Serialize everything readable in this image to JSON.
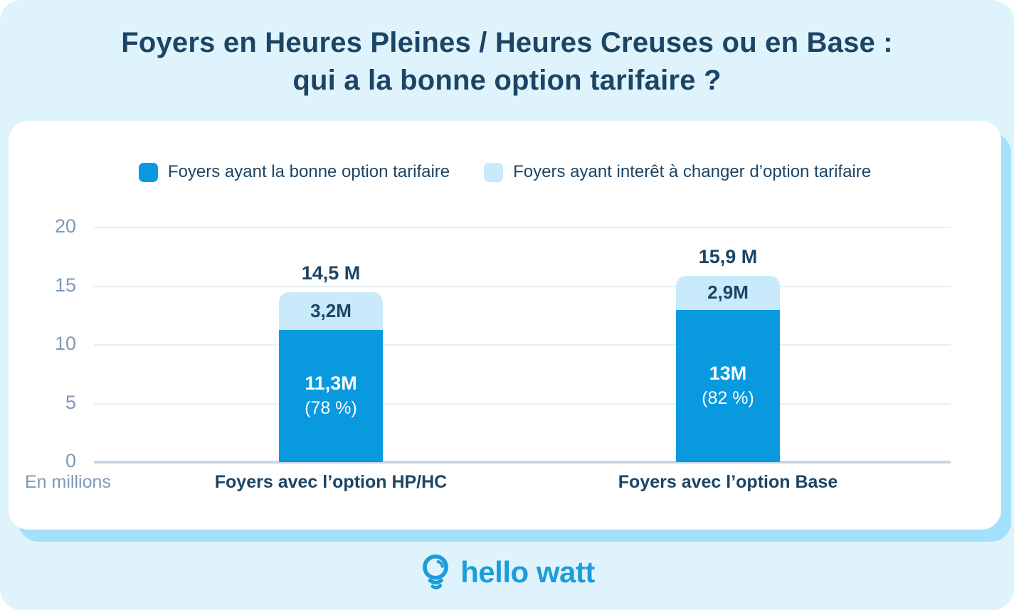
{
  "title": {
    "line1": "Foyers en Heures Pleines / Heures Creuses ou en Base :",
    "line2": "qui a la bonne option tarifaire ?"
  },
  "legend": [
    {
      "label": "Foyers ayant la bonne option tarifaire",
      "color": "#0899DE"
    },
    {
      "label": "Foyers ayant interêt à changer d’option tarifaire",
      "color": "#C8EAFB"
    }
  ],
  "chart_data": {
    "type": "bar",
    "stacked": true,
    "unit_label": "En millions",
    "ylim": [
      0,
      20
    ],
    "yticks": [
      0,
      5,
      10,
      15,
      20
    ],
    "grid": true,
    "legend_position": "top",
    "categories": [
      "Foyers avec l’option HP/HC",
      "Foyers avec l’option Base"
    ],
    "series": [
      {
        "name": "Foyers ayant la bonne option tarifaire",
        "color": "#0899DE",
        "values": [
          11.3,
          13.0
        ],
        "value_labels": [
          "11,3M",
          "13M"
        ],
        "pct_labels": [
          "(78 %)",
          "(82 %)"
        ]
      },
      {
        "name": "Foyers ayant interêt à changer d’option tarifaire",
        "color": "#C8EAFB",
        "values": [
          3.2,
          2.9
        ],
        "value_labels": [
          "3,2M",
          "2,9M"
        ]
      }
    ],
    "totals": [
      14.5,
      15.9
    ],
    "total_labels": [
      "14,5 M",
      "15,9 M"
    ]
  },
  "footer": {
    "brand": "hello watt"
  },
  "theme": {
    "background": "#DFF3FC",
    "card": "#FFFFFF",
    "card_shadow": "#A3E1FA",
    "navy": "#1C4565",
    "axis_text": "#7E99B4",
    "gridline": "#E4EEF6",
    "zero_line": "#C9D6E3",
    "logo_blue": "#1E9CD8"
  }
}
